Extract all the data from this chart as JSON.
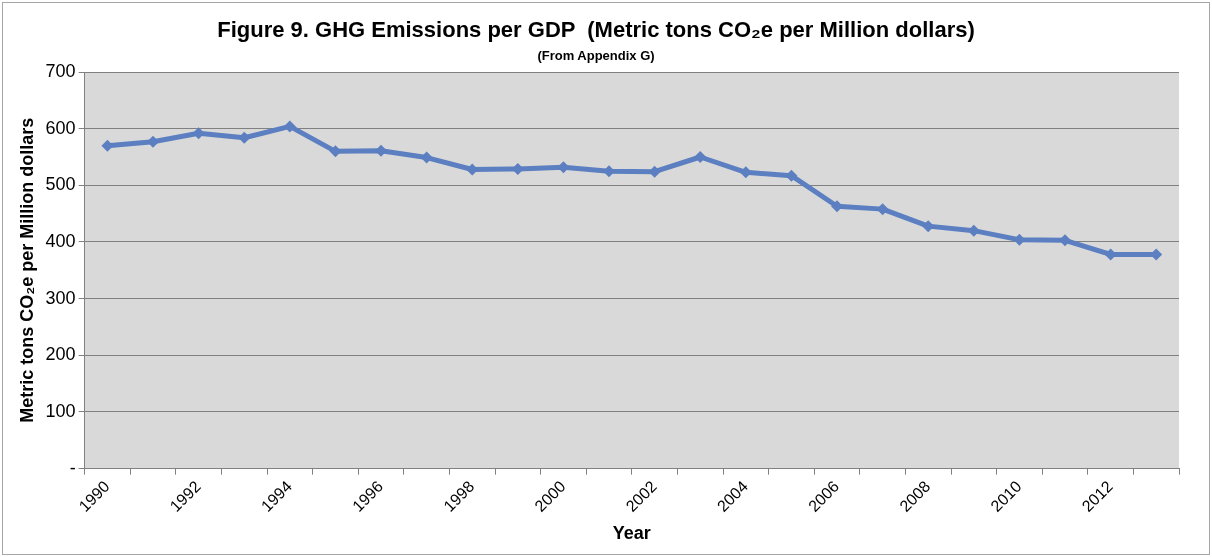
{
  "chart_data": {
    "type": "line",
    "title": "Figure 9. GHG Emissions per GDP  (Metric tons CO₂e per Million dollars)",
    "subtitle": "(From Appendix G)",
    "xlabel": "Year",
    "ylabel": "Metric tons CO₂e per Million dollars",
    "categories": [
      "1990",
      null,
      "1992",
      null,
      "1994",
      null,
      "1996",
      null,
      "1998",
      null,
      "2000",
      null,
      "2002",
      null,
      "2004",
      null,
      "2006",
      null,
      "2008",
      null,
      "2010",
      null,
      "2012",
      null
    ],
    "series": [
      {
        "color": "#5b7fc1",
        "values": [
          570,
          577,
          592,
          584,
          604,
          560,
          561,
          549,
          528,
          529,
          532,
          525,
          524,
          550,
          523,
          517,
          463,
          458,
          428,
          420,
          404,
          403,
          378,
          378
        ]
      }
    ],
    "ylim": [
      0,
      700
    ],
    "yticks": [
      {
        "value": 0,
        "label": "-"
      },
      100,
      200,
      300,
      400,
      500,
      600,
      700
    ],
    "grid": "y",
    "legend": false,
    "marker": "diamond",
    "line_style": "solid"
  }
}
